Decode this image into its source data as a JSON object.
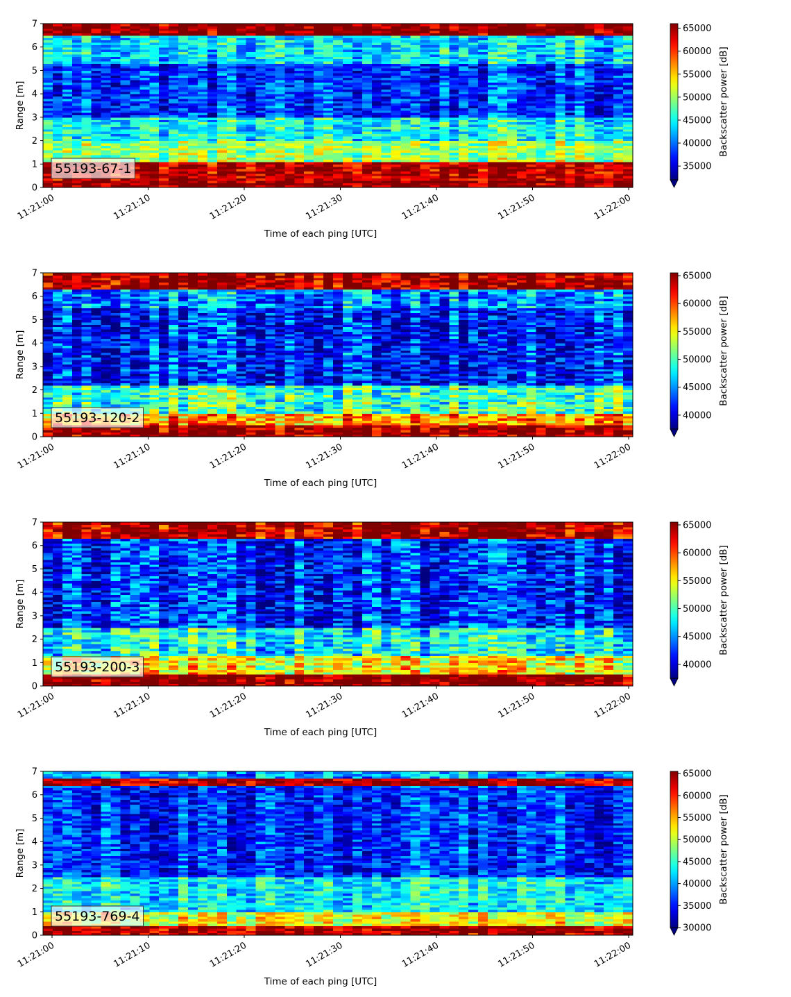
{
  "chart_data": [
    {
      "type": "heatmap",
      "station_label": "55193-67-1",
      "xlabel": "Time of each ping [UTC]",
      "ylabel": "Range [m]",
      "colorbar_label": "Backscatter power [dB]",
      "colormap": "jet",
      "xlim": [
        "11:21:00",
        "11:22:00"
      ],
      "xticks": [
        "11:21:00",
        "11:21:10",
        "11:21:20",
        "11:21:30",
        "11:21:40",
        "11:21:50",
        "11:22:00"
      ],
      "ylim": [
        0,
        7
      ],
      "yticks": [
        "0",
        "1",
        "2",
        "3",
        "4",
        "5",
        "6",
        "7"
      ],
      "clim": [
        32000,
        66000
      ],
      "colorbar_ticks": [
        "35000",
        "40000",
        "45000",
        "50000",
        "55000",
        "60000",
        "65000"
      ],
      "colorbar_extend": "min",
      "features": [
        {
          "range_m": [
            0,
            0.35
          ],
          "value": 66000
        },
        {
          "range_m": [
            0.35,
            1.1
          ],
          "value": 64000
        },
        {
          "range_m": [
            6.5,
            7
          ],
          "value": 66000
        },
        {
          "range_m": [
            1.1,
            2.0
          ],
          "value": 50000
        },
        {
          "range_m": [
            3.0,
            5.3
          ],
          "value": 38000
        },
        {
          "range_m": [
            5.3,
            6.5
          ],
          "value": 44000
        }
      ]
    },
    {
      "type": "heatmap",
      "station_label": "55193-120-2",
      "xlabel": "Time of each ping [UTC]",
      "ylabel": "Range [m]",
      "colorbar_label": "Backscatter power [dB]",
      "colormap": "jet",
      "xlim": [
        "11:21:00",
        "11:22:00"
      ],
      "xticks": [
        "11:21:00",
        "11:21:10",
        "11:21:20",
        "11:21:30",
        "11:21:40",
        "11:21:50",
        "11:22:00"
      ],
      "ylim": [
        0,
        7
      ],
      "yticks": [
        "0",
        "1",
        "2",
        "3",
        "4",
        "5",
        "6",
        "7"
      ],
      "clim": [
        37500,
        65500
      ],
      "colorbar_ticks": [
        "40000",
        "45000",
        "50000",
        "55000",
        "60000",
        "65000"
      ],
      "colorbar_extend": "min",
      "features": [
        {
          "range_m": [
            0,
            0.5
          ],
          "value": 65500
        },
        {
          "range_m": [
            0.5,
            1.0
          ],
          "value": 58000
        },
        {
          "range_m": [
            6.35,
            7
          ],
          "value": 65000
        },
        {
          "range_m": [
            1.0,
            2.2
          ],
          "value": 50000
        },
        {
          "range_m": [
            2.2,
            5.5
          ],
          "value": 42000
        },
        {
          "range_m": [
            5.5,
            6.35
          ],
          "value": 45000
        }
      ]
    },
    {
      "type": "heatmap",
      "station_label": "55193-200-3",
      "xlabel": "Time of each ping [UTC]",
      "ylabel": "Range [m]",
      "colorbar_label": "Backscatter power [dB]",
      "colormap": "jet",
      "xlim": [
        "11:21:00",
        "11:22:00"
      ],
      "xticks": [
        "11:21:00",
        "11:21:10",
        "11:21:20",
        "11:21:30",
        "11:21:40",
        "11:21:50",
        "11:22:00"
      ],
      "ylim": [
        0,
        7
      ],
      "yticks": [
        "0",
        "1",
        "2",
        "3",
        "4",
        "5",
        "6",
        "7"
      ],
      "clim": [
        37500,
        65500
      ],
      "colorbar_ticks": [
        "40000",
        "45000",
        "50000",
        "55000",
        "60000",
        "65000"
      ],
      "colorbar_extend": "min",
      "features": [
        {
          "range_m": [
            0,
            0.45
          ],
          "value": 65500
        },
        {
          "range_m": [
            0.45,
            1.3
          ],
          "value": 55000
        },
        {
          "range_m": [
            6.35,
            7
          ],
          "value": 64000
        },
        {
          "range_m": [
            1.3,
            2.5
          ],
          "value": 48000
        },
        {
          "range_m": [
            2.5,
            6.35
          ],
          "value": 42000
        }
      ]
    },
    {
      "type": "heatmap",
      "station_label": "55193-769-4",
      "xlabel": "Time of each ping [UTC]",
      "ylabel": "Range [m]",
      "colorbar_label": "Backscatter power [dB]",
      "colormap": "jet",
      "xlim": [
        "11:21:00",
        "11:22:00"
      ],
      "xticks": [
        "11:21:00",
        "11:21:10",
        "11:21:20",
        "11:21:30",
        "11:21:40",
        "11:21:50",
        "11:22:00"
      ],
      "ylim": [
        0,
        7
      ],
      "yticks": [
        "0",
        "1",
        "2",
        "3",
        "4",
        "5",
        "6",
        "7"
      ],
      "clim": [
        30000,
        65500
      ],
      "colorbar_ticks": [
        "30000",
        "35000",
        "40000",
        "45000",
        "50000",
        "55000",
        "60000",
        "65000"
      ],
      "colorbar_extend": "min",
      "features": [
        {
          "range_m": [
            0,
            0.4
          ],
          "value": 64000
        },
        {
          "range_m": [
            0.4,
            1.0
          ],
          "value": 52000
        },
        {
          "range_m": [
            6.4,
            6.65
          ],
          "value": 64000
        },
        {
          "range_m": [
            1.0,
            2.5
          ],
          "value": 43000
        },
        {
          "range_m": [
            2.5,
            6.4
          ],
          "value": 36000
        },
        {
          "range_m": [
            6.65,
            7
          ],
          "value": 40000
        }
      ]
    }
  ]
}
